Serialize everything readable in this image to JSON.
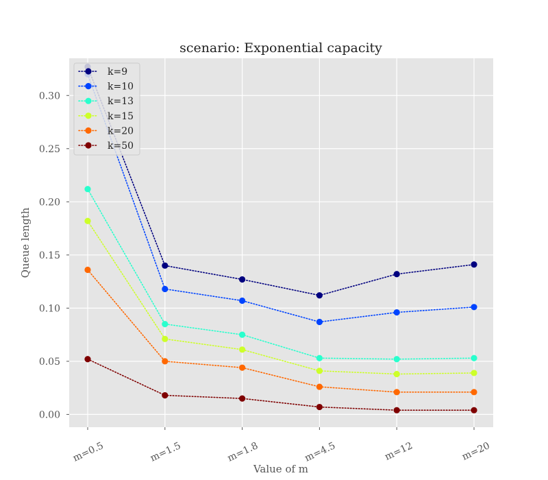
{
  "chart_data": {
    "type": "line",
    "title": "scenario: Exponential capacity",
    "xlabel": "Value of m",
    "ylabel": "Queue length",
    "categories": [
      "m=0.5",
      "m=1.5",
      "m=1.8",
      "m=4.5",
      "m=12",
      "m=20"
    ],
    "ylim": [
      -0.012,
      0.335
    ],
    "yticks": [
      0.0,
      0.05,
      0.1,
      0.15,
      0.2,
      0.25,
      0.3
    ],
    "ytick_labels": [
      "0.00",
      "0.05",
      "0.10",
      "0.15",
      "0.20",
      "0.25",
      "0.30"
    ],
    "grid": true,
    "legend_position": "top-left",
    "line_style": "dotted",
    "background": "#e5e5e5",
    "series": [
      {
        "name": "k=9",
        "color": "#00007f",
        "values": [
          0.327,
          0.14,
          0.127,
          0.112,
          0.132,
          0.141
        ]
      },
      {
        "name": "k=10",
        "color": "#0044ff",
        "values": [
          0.32,
          0.118,
          0.107,
          0.087,
          0.096,
          0.101
        ]
      },
      {
        "name": "k=13",
        "color": "#29ffcd",
        "values": [
          0.212,
          0.085,
          0.075,
          0.053,
          0.052,
          0.053
        ]
      },
      {
        "name": "k=15",
        "color": "#cdff29",
        "values": [
          0.182,
          0.071,
          0.061,
          0.041,
          0.038,
          0.039
        ]
      },
      {
        "name": "k=20",
        "color": "#ff6800",
        "values": [
          0.136,
          0.05,
          0.044,
          0.026,
          0.021,
          0.021
        ]
      },
      {
        "name": "k=50",
        "color": "#7f0000",
        "values": [
          0.052,
          0.018,
          0.015,
          0.007,
          0.004,
          0.004
        ]
      }
    ]
  }
}
